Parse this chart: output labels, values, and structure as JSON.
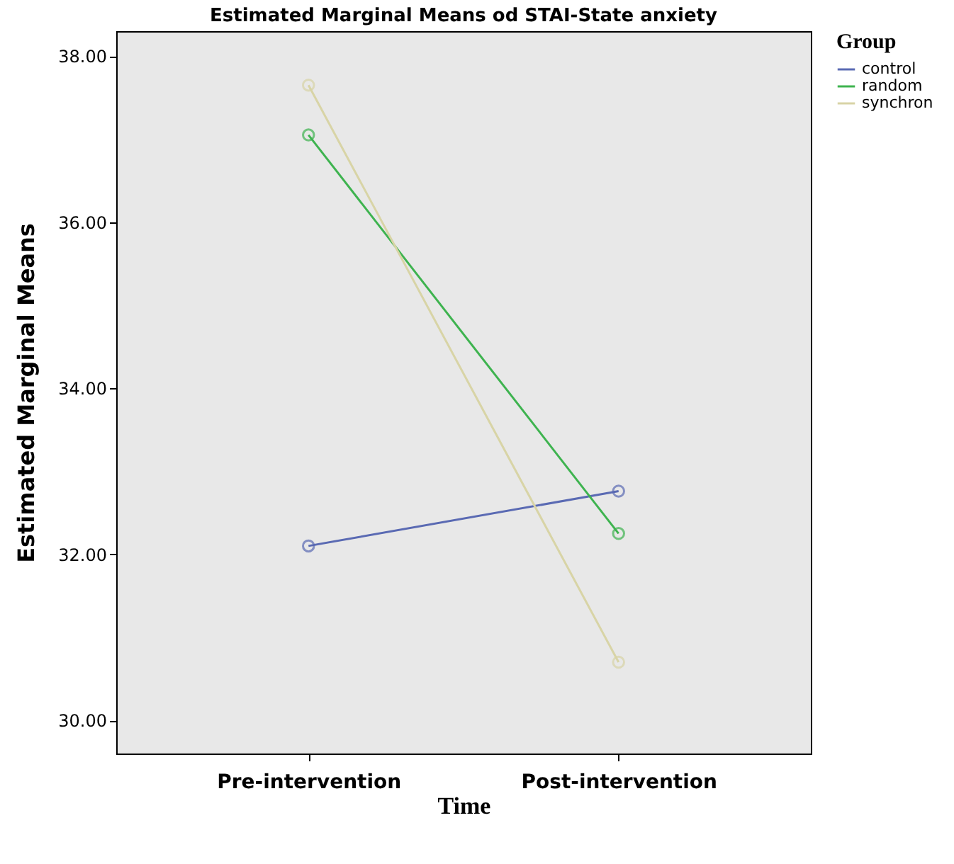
{
  "chart_data": {
    "type": "line",
    "title": "Estimated Marginal Means od STAI-State anxiety",
    "xlabel": "Time",
    "ylabel": "Estimated Marginal Means",
    "legend_title": "Group",
    "categories": [
      "Pre-intervention",
      "Post-intervention"
    ],
    "series": [
      {
        "name": "control",
        "color": "#5a6ab3",
        "values": [
          32.1,
          32.76
        ]
      },
      {
        "name": "random",
        "color": "#3eb34f",
        "values": [
          37.05,
          32.25
        ]
      },
      {
        "name": "synchron",
        "color": "#d8d4a6",
        "values": [
          37.65,
          30.7
        ]
      }
    ],
    "ylim": [
      29.6,
      38.3
    ],
    "yticks": [
      {
        "value": 30,
        "label": "30.00"
      },
      {
        "value": 32,
        "label": "32.00"
      },
      {
        "value": 34,
        "label": "34.00"
      },
      {
        "value": 36,
        "label": "36.00"
      },
      {
        "value": 38,
        "label": "38.00"
      }
    ],
    "legend": "top right",
    "marker": "circle",
    "line_style": "solid",
    "grid": false
  }
}
